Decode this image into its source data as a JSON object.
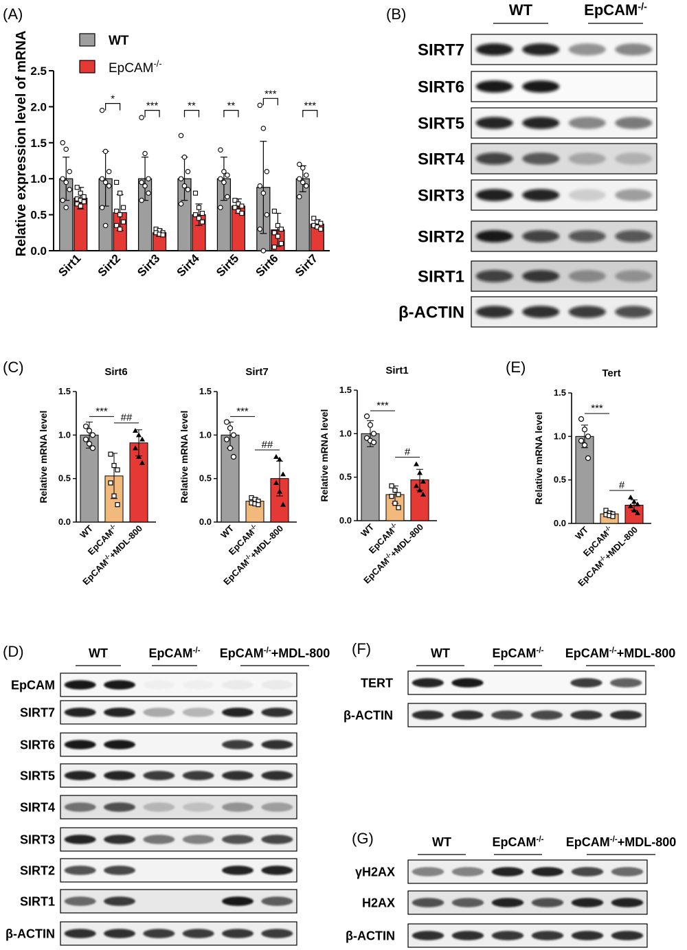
{
  "panels": {
    "A": "(A)",
    "B": "(B)",
    "C": "(C)",
    "D": "(D)",
    "E": "(E)",
    "F": "(F)",
    "G": "(G)"
  },
  "colors": {
    "wt": "#9e9e9e",
    "ko": "#e53935",
    "ko_c": "#f2b97c",
    "mdl": "#e53935"
  },
  "groups": {
    "wt": "WT",
    "ko_base": "EpCAM",
    "ko_sup": "-/-",
    "mdl_suffix": "+MDL-800"
  },
  "chart_data": [
    {
      "id": "A",
      "type": "bar",
      "ylabel": "Relative expression level of mRNA",
      "ylim": [
        0,
        2.5
      ],
      "yticks": [
        "0.0",
        "0.5",
        "1.0",
        "1.5",
        "2.0",
        "2.5"
      ],
      "categories": [
        "Sirt1",
        "Sirt2",
        "Sirt3",
        "Sirt4",
        "Sirt5",
        "Sirt6",
        "Sirt7"
      ],
      "legend": [
        "WT",
        "EpCAM-/-"
      ],
      "legend_placement": "top-left",
      "series": [
        {
          "name": "WT",
          "values": [
            1.0,
            1.0,
            1.0,
            1.0,
            1.0,
            0.88,
            1.0
          ],
          "err": [
            0.3,
            0.38,
            0.3,
            0.3,
            0.3,
            0.64,
            0.18
          ]
        },
        {
          "name": "EpCAM-/-",
          "values": [
            0.73,
            0.53,
            0.25,
            0.5,
            0.62,
            0.29,
            0.37
          ],
          "err": [
            0.15,
            0.25,
            0.05,
            0.15,
            0.1,
            0.23,
            0.06
          ]
        }
      ],
      "points": [
        [
          [
            1.5,
            1.41,
            1.1,
            1.0,
            0.95,
            0.85,
            0.7,
            0.6
          ],
          [
            0.88,
            0.8,
            0.75,
            0.72,
            0.7,
            0.68,
            0.65,
            0.62
          ]
        ],
        [
          [
            1.95,
            1.38,
            1.1,
            1.0,
            0.95,
            0.9,
            0.6,
            0.35
          ],
          [
            0.95,
            0.8,
            0.6,
            0.55,
            0.5,
            0.4,
            0.35,
            0.3
          ]
        ],
        [
          [
            1.85,
            1.35,
            1.0,
            0.95,
            0.9,
            0.8,
            0.7
          ],
          [
            0.3,
            0.28,
            0.25,
            0.25,
            0.23,
            0.22
          ]
        ],
        [
          [
            1.6,
            1.3,
            1.1,
            1.0,
            0.9,
            0.85,
            0.65
          ],
          [
            0.8,
            0.6,
            0.52,
            0.5,
            0.45,
            0.4
          ]
        ],
        [
          [
            1.4,
            1.1,
            1.05,
            1.0,
            0.95,
            0.75,
            0.6
          ],
          [
            0.7,
            0.65,
            0.62,
            0.6,
            0.55,
            0.52
          ]
        ],
        [
          [
            2.02,
            1.7,
            1.1,
            0.9,
            0.8,
            0.5,
            0.3,
            0.0
          ],
          [
            0.55,
            0.35,
            0.3,
            0.25,
            0.2,
            0.1,
            0.05
          ]
        ],
        [
          [
            1.2,
            1.15,
            1.05,
            1.0,
            0.95,
            0.9,
            0.75
          ],
          [
            0.45,
            0.4,
            0.38,
            0.35,
            0.33,
            0.3
          ]
        ]
      ],
      "significance": [
        "",
        "*",
        "***",
        "**",
        "**",
        "***",
        "***"
      ]
    },
    {
      "id": "C1",
      "type": "bar",
      "title": "Sirt6",
      "ylabel": "Relative mRNA level",
      "ylim": [
        0,
        1.5
      ],
      "yticks": [
        "0.0",
        "0.5",
        "1.0",
        "1.5"
      ],
      "values": [
        1.0,
        0.53,
        0.91
      ],
      "err": [
        0.15,
        0.26,
        0.15
      ],
      "points": [
        [
          1.1,
          1.05,
          1.0,
          0.95,
          0.9,
          0.85
        ],
        [
          0.78,
          0.65,
          0.6,
          0.45,
          0.3,
          0.2
        ],
        [
          1.05,
          1.0,
          0.95,
          0.85,
          0.75,
          0.68
        ]
      ],
      "comparisons": [
        "***",
        "##"
      ]
    },
    {
      "id": "C2",
      "type": "bar",
      "title": "Sirt7",
      "ylabel": "Relative mRNA level",
      "ylim": [
        0,
        1.5
      ],
      "yticks": [
        "0.0",
        "0.5",
        "1.0",
        "1.5"
      ],
      "values": [
        1.0,
        0.24,
        0.5
      ],
      "err": [
        0.15,
        0.04,
        0.2
      ],
      "points": [
        [
          1.15,
          1.08,
          1.0,
          0.95,
          0.85,
          0.75
        ],
        [
          0.28,
          0.26,
          0.24,
          0.22,
          0.21,
          0.2
        ],
        [
          0.75,
          0.72,
          0.55,
          0.45,
          0.35,
          0.2
        ]
      ],
      "comparisons": [
        "***",
        "##"
      ]
    },
    {
      "id": "C3",
      "type": "bar",
      "title": "Sirt1",
      "ylabel": "Relative mRNA level",
      "ylim": [
        0,
        1.5
      ],
      "yticks": [
        "0.0",
        "0.5",
        "1.0",
        "1.5"
      ],
      "values": [
        1.0,
        0.3,
        0.47
      ],
      "err": [
        0.15,
        0.1,
        0.12
      ],
      "points": [
        [
          1.2,
          1.1,
          1.0,
          0.95,
          0.92,
          0.9
        ],
        [
          0.4,
          0.35,
          0.3,
          0.28,
          0.2,
          0.15
        ],
        [
          0.65,
          0.55,
          0.45,
          0.4,
          0.35,
          0.3
        ]
      ],
      "comparisons": [
        "***",
        "#"
      ]
    },
    {
      "id": "E",
      "type": "bar",
      "title": "Tert",
      "ylabel": "Relative mRNA level",
      "ylim": [
        0,
        1.5
      ],
      "yticks": [
        "0.0",
        "0.5",
        "1.0",
        "1.5"
      ],
      "values": [
        1.0,
        0.11,
        0.21
      ],
      "err": [
        0.13,
        0.03,
        0.06
      ],
      "points": [
        [
          1.2,
          1.08,
          1.0,
          0.95,
          0.9,
          0.75
        ],
        [
          0.15,
          0.12,
          0.11,
          0.1,
          0.09,
          0.08
        ],
        [
          0.3,
          0.25,
          0.22,
          0.2,
          0.15,
          0.12
        ]
      ],
      "comparisons": [
        "***",
        "#"
      ]
    }
  ],
  "blots": {
    "B": {
      "header": [
        "WT",
        "EpCAM-/-"
      ],
      "rows": [
        "SIRT7",
        "SIRT6",
        "SIRT5",
        "SIRT4",
        "SIRT3",
        "SIRT2",
        "SIRT1",
        "β-ACTIN"
      ]
    },
    "D": {
      "header": [
        "WT",
        "EpCAM-/-",
        "EpCAM-/-+MDL-800"
      ],
      "rows": [
        "EpCAM",
        "SIRT7",
        "SIRT6",
        "SIRT5",
        "SIRT4",
        "SIRT3",
        "SIRT2",
        "SIRT1",
        "β-ACTIN"
      ]
    },
    "F": {
      "header": [
        "WT",
        "EpCAM-/-",
        "EpCAM-/-+MDL-800"
      ],
      "rows": [
        "TERT",
        "β-ACTIN"
      ]
    },
    "G": {
      "header": [
        "WT",
        "EpCAM-/-",
        "EpCAM-/-+MDL-800"
      ],
      "rows": [
        "γH2AX",
        "H2AX",
        "β-ACTIN"
      ]
    }
  }
}
